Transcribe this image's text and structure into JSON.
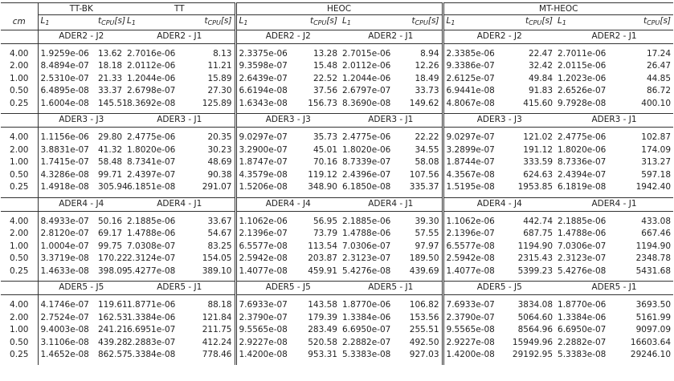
{
  "header": {
    "groups": [
      "TT-BK",
      "TT",
      "HEOC",
      "MT-HEOC"
    ],
    "cm": "cm",
    "columns": [
      {
        "main": "L",
        "sub": "1"
      },
      {
        "main": "t",
        "sub": "CPU",
        "unit": "[s]"
      },
      {
        "main": "L",
        "sub": "1"
      },
      {
        "main": "t",
        "sub": "CPU",
        "unit": "[s]"
      },
      {
        "main": "L",
        "sub": "1"
      },
      {
        "main": "t",
        "sub": "CPU",
        "unit": "[s]"
      },
      {
        "main": "L",
        "sub": "1"
      },
      {
        "main": "t",
        "sub": "CPU",
        "unit": "[s]"
      },
      {
        "main": "L",
        "sub": "1"
      },
      {
        "main": "t",
        "sub": "CPU",
        "unit": "[s]"
      },
      {
        "main": "L",
        "sub": "1"
      },
      {
        "main": "t",
        "sub": "CPU",
        "unit": "[s]"
      }
    ]
  },
  "blocks": [
    {
      "labels": [
        "ADER2 - J2",
        "ADER2 - J1",
        "ADER2 - J2",
        "ADER2 - J1",
        "ADER2 - J2",
        "ADER2 - J1"
      ],
      "rows": [
        {
          "cm": "4.00",
          "cells": [
            "1.9259e-06",
            "13.62",
            "2.7016e-06",
            "8.13",
            "2.3375e-06",
            "13.28",
            "2.7015e-06",
            "8.94",
            "2.3385e-06",
            "22.47",
            "2.7011e-06",
            "17.24"
          ]
        },
        {
          "cm": "2.00",
          "cells": [
            "8.4894e-07",
            "18.18",
            "2.0112e-06",
            "11.21",
            "9.3598e-07",
            "15.48",
            "2.0112e-06",
            "12.26",
            "9.3386e-07",
            "32.42",
            "2.0115e-06",
            "26.47"
          ]
        },
        {
          "cm": "1.00",
          "cells": [
            "2.5310e-07",
            "21.33",
            "1.2044e-06",
            "15.89",
            "2.6439e-07",
            "22.52",
            "1.2044e-06",
            "18.49",
            "2.6125e-07",
            "49.84",
            "1.2023e-06",
            "44.85"
          ]
        },
        {
          "cm": "0.50",
          "cells": [
            "6.4895e-08",
            "33.37",
            "2.6798e-07",
            "27.30",
            "6.6194e-08",
            "37.56",
            "2.6797e-07",
            "33.73",
            "6.9441e-08",
            "91.83",
            "2.6526e-07",
            "86.72"
          ]
        },
        {
          "cm": "0.25",
          "cells": [
            "1.6004e-08",
            "145.51",
            "8.3692e-08",
            "125.89",
            "1.6343e-08",
            "156.73",
            "8.3690e-08",
            "149.62",
            "4.8067e-08",
            "415.60",
            "9.7928e-08",
            "400.10"
          ]
        }
      ]
    },
    {
      "labels": [
        "ADER3 - J3",
        "ADER3 - J1",
        "ADER3 - J3",
        "ADER3 - J1",
        "ADER3 - J3",
        "ADER3 - J1"
      ],
      "rows": [
        {
          "cm": "4.00",
          "cells": [
            "1.1156e-06",
            "29.80",
            "2.4775e-06",
            "20.35",
            "9.0297e-07",
            "35.73",
            "2.4775e-06",
            "22.22",
            "9.0297e-07",
            "121.02",
            "2.4775e-06",
            "102.87"
          ]
        },
        {
          "cm": "2.00",
          "cells": [
            "3.8831e-07",
            "41.32",
            "1.8020e-06",
            "30.23",
            "3.2900e-07",
            "45.01",
            "1.8020e-06",
            "34.55",
            "3.2899e-07",
            "191.12",
            "1.8020e-06",
            "174.09"
          ]
        },
        {
          "cm": "1.00",
          "cells": [
            "1.7415e-07",
            "58.48",
            "8.7341e-07",
            "48.69",
            "1.8747e-07",
            "70.16",
            "8.7339e-07",
            "58.08",
            "1.8744e-07",
            "333.59",
            "8.7336e-07",
            "313.27"
          ]
        },
        {
          "cm": "0.50",
          "cells": [
            "4.3286e-08",
            "99.71",
            "2.4397e-07",
            "90.38",
            "4.3579e-08",
            "119.12",
            "2.4396e-07",
            "107.56",
            "4.3567e-08",
            "624.63",
            "2.4394e-07",
            "597.18"
          ]
        },
        {
          "cm": "0.25",
          "cells": [
            "1.4918e-08",
            "305.94",
            "6.1851e-08",
            "291.07",
            "1.5206e-08",
            "348.90",
            "6.1850e-08",
            "335.37",
            "1.5195e-08",
            "1953.85",
            "6.1819e-08",
            "1942.40"
          ]
        }
      ]
    },
    {
      "labels": [
        "ADER4 - J4",
        "ADER4 - J1",
        "ADER4 - J4",
        "ADER4 - J1",
        "ADER4 - J4",
        "ADER4 - J1"
      ],
      "rows": [
        {
          "cm": "4.00",
          "cells": [
            "8.4933e-07",
            "50.16",
            "2.1885e-06",
            "33.67",
            "1.1062e-06",
            "56.95",
            "2.1885e-06",
            "39.30",
            "1.1062e-06",
            "442.74",
            "2.1885e-06",
            "433.08"
          ]
        },
        {
          "cm": "2.00",
          "cells": [
            "2.8120e-07",
            "69.17",
            "1.4788e-06",
            "54.67",
            "2.1396e-07",
            "73.79",
            "1.4788e-06",
            "57.55",
            "2.1396e-07",
            "687.75",
            "1.4788e-06",
            "667.46"
          ]
        },
        {
          "cm": "1.00",
          "cells": [
            "1.0004e-07",
            "99.75",
            "7.0308e-07",
            "83.25",
            "6.5577e-08",
            "113.54",
            "7.0306e-07",
            "97.97",
            "6.5577e-08",
            "1194.90",
            "7.0306e-07",
            "1194.90"
          ]
        },
        {
          "cm": "0.50",
          "cells": [
            "3.3719e-08",
            "170.22",
            "2.3124e-07",
            "154.05",
            "2.5942e-08",
            "203.87",
            "2.3123e-07",
            "189.50",
            "2.5942e-08",
            "2315.43",
            "2.3123e-07",
            "2348.78"
          ]
        },
        {
          "cm": "0.25",
          "cells": [
            "1.4633e-08",
            "398.09",
            "5.4277e-08",
            "389.10",
            "1.4077e-08",
            "459.91",
            "5.4276e-08",
            "439.69",
            "1.4077e-08",
            "5399.23",
            "5.4276e-08",
            "5431.68"
          ]
        }
      ]
    },
    {
      "labels": [
        "ADER5 - J5",
        "ADER5 - J1",
        "ADER5 - J5",
        "ADER5 - J1",
        "ADER5 - J5",
        "ADER5 - J1"
      ],
      "rows": [
        {
          "cm": "4.00",
          "cells": [
            "4.1746e-07",
            "119.61",
            "1.8771e-06",
            "88.18",
            "7.6933e-07",
            "143.58",
            "1.8770e-06",
            "106.82",
            "7.6933e-07",
            "3834.08",
            "1.8770e-06",
            "3693.50"
          ]
        },
        {
          "cm": "2.00",
          "cells": [
            "2.7524e-07",
            "162.53",
            "1.3384e-06",
            "121.84",
            "2.3790e-07",
            "179.39",
            "1.3384e-06",
            "153.56",
            "2.3790e-07",
            "5064.60",
            "1.3384e-06",
            "5161.99"
          ]
        },
        {
          "cm": "1.00",
          "cells": [
            "9.4003e-08",
            "241.21",
            "6.6951e-07",
            "211.75",
            "9.5565e-08",
            "283.49",
            "6.6950e-07",
            "255.51",
            "9.5565e-08",
            "8564.96",
            "6.6950e-07",
            "9097.09"
          ]
        },
        {
          "cm": "0.50",
          "cells": [
            "3.1106e-08",
            "439.28",
            "2.2883e-07",
            "412.24",
            "2.9227e-08",
            "520.58",
            "2.2882e-07",
            "492.50",
            "2.9227e-08",
            "15949.96",
            "2.2882e-07",
            "16603.64"
          ]
        },
        {
          "cm": "0.25",
          "cells": [
            "1.4652e-08",
            "862.57",
            "5.3384e-08",
            "778.46",
            "1.4200e-08",
            "953.31",
            "5.3383e-08",
            "927.03",
            "1.4200e-08",
            "29192.95",
            "5.3383e-08",
            "29246.10"
          ]
        }
      ]
    }
  ]
}
